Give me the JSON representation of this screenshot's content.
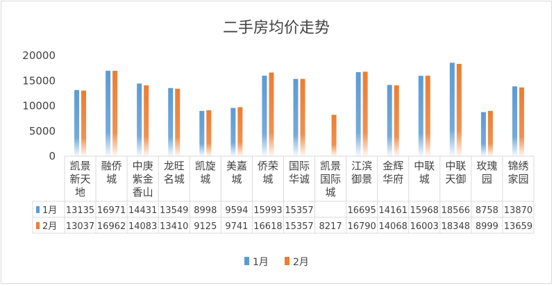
{
  "chart_data": {
    "type": "bar",
    "title": "二手房均价走势",
    "categories": [
      [
        "凯景",
        "新天",
        "地"
      ],
      [
        "融侨",
        "城"
      ],
      [
        "中庚",
        "紫金",
        "香山"
      ],
      [
        "龙旺",
        "名城"
      ],
      [
        "凯旋",
        "城"
      ],
      [
        "美嘉",
        "城"
      ],
      [
        "侨荣",
        "城"
      ],
      [
        "国际",
        "华诚"
      ],
      [
        "凯景",
        "国际",
        "城"
      ],
      [
        "江滨",
        "御景"
      ],
      [
        "金辉",
        "华府"
      ],
      [
        "中联",
        "城"
      ],
      [
        "中联",
        "天御"
      ],
      [
        "玫瑰",
        "园"
      ],
      [
        "锦绣",
        "家园"
      ]
    ],
    "series": [
      {
        "name": "1月",
        "color": "#5b9bd5",
        "values": [
          13135,
          16971,
          14431,
          13549,
          8998,
          9594,
          15993,
          15357,
          null,
          16695,
          14161,
          15968,
          18566,
          8758,
          13870
        ]
      },
      {
        "name": "2月",
        "color": "#ed7d31",
        "values": [
          13037,
          16962,
          14083,
          13410,
          9125,
          9741,
          16618,
          15357,
          8217,
          16790,
          14068,
          16003,
          18348,
          8999,
          13659
        ]
      }
    ],
    "ylim": [
      0,
      20000
    ],
    "yticks": [
      "0",
      "5000",
      "10000",
      "15000",
      "20000"
    ],
    "legend_position": "bottom",
    "grid": false,
    "data_table": true
  }
}
